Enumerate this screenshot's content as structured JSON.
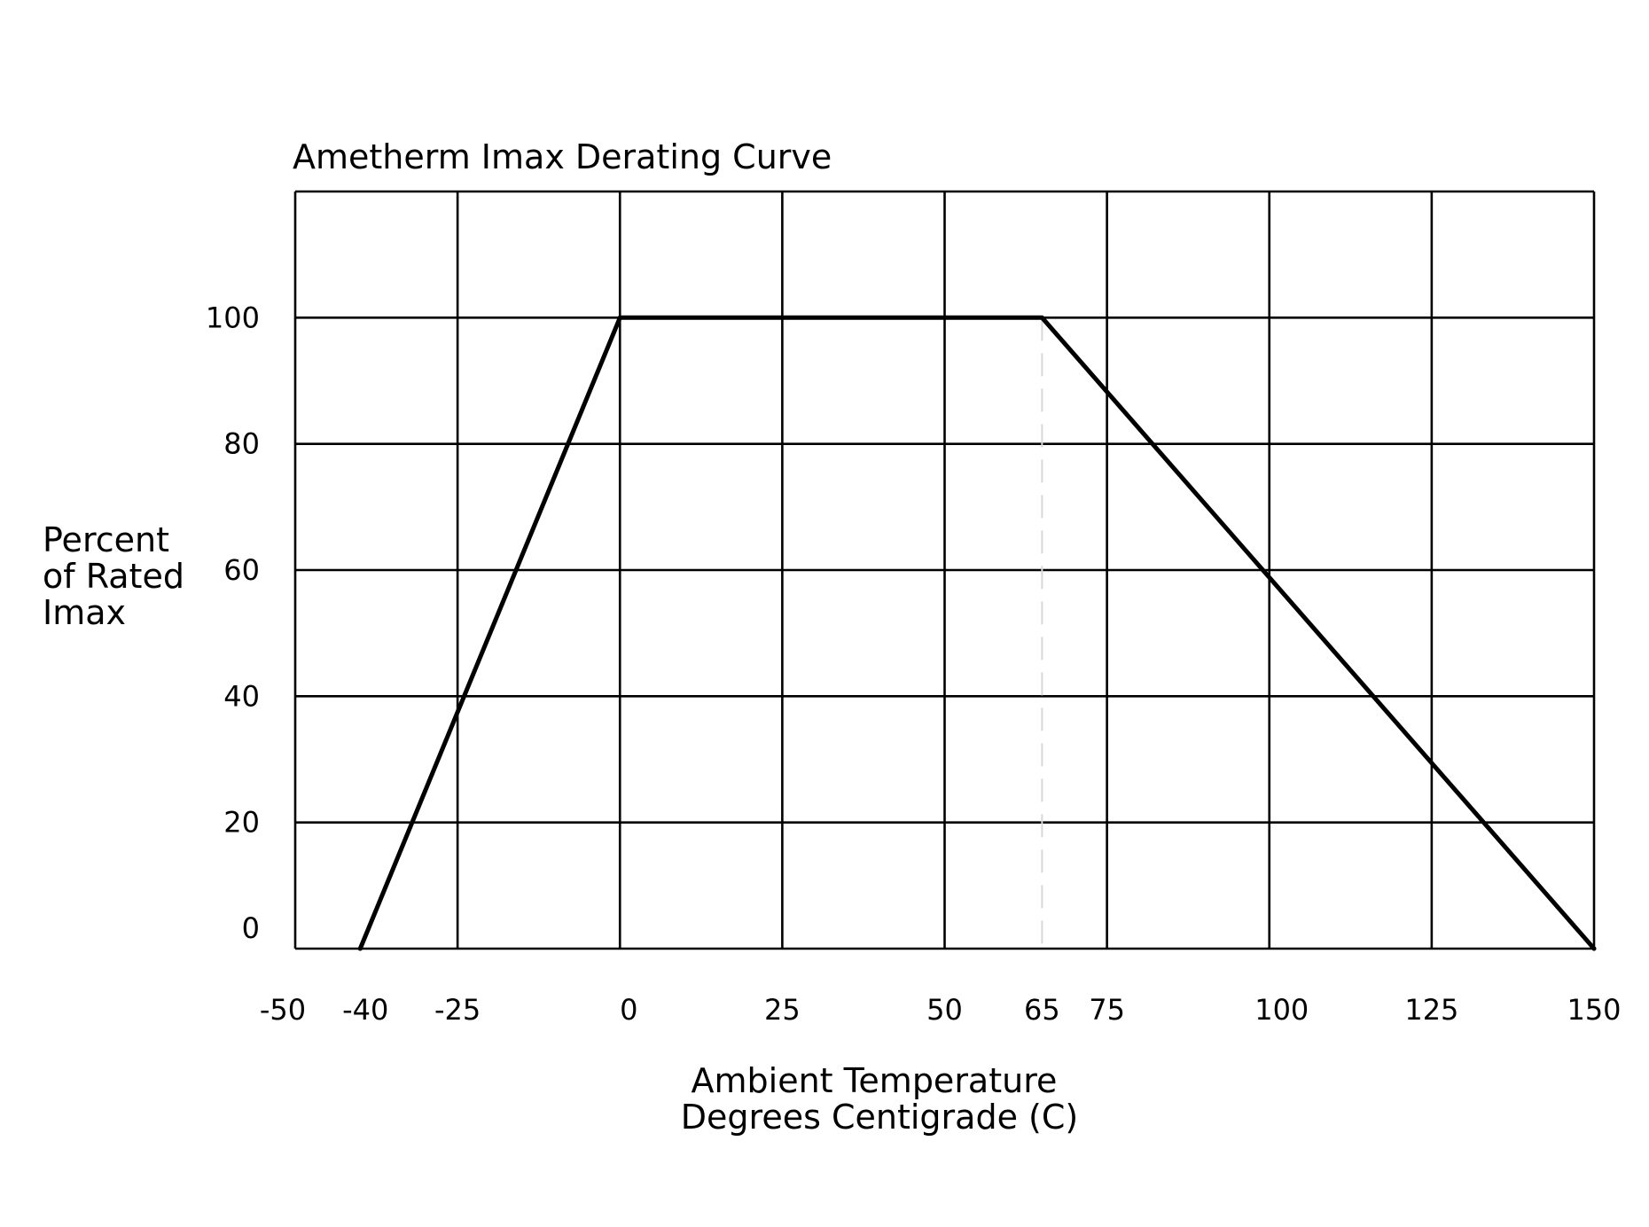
{
  "chart_data": {
    "type": "line",
    "title": "Ametherm Imax Derating Curve",
    "ylabel_lines": [
      "Percent",
      "of Rated",
      "Imax"
    ],
    "xlabel_lines": [
      "Ambient Temperature",
      "Degrees Centigrade (C)"
    ],
    "xlim": [
      -50,
      150
    ],
    "ylim": [
      0,
      120
    ],
    "x_gridlines": [
      -50,
      -25,
      0,
      25,
      50,
      75,
      100,
      125,
      150
    ],
    "y_gridlines": [
      0,
      20,
      40,
      60,
      80,
      100,
      120
    ],
    "x_ticks": [
      {
        "value": -50,
        "label": "-50"
      },
      {
        "value": -40,
        "label": "-40"
      },
      {
        "value": -25,
        "label": "-25"
      },
      {
        "value": 0,
        "label": "0"
      },
      {
        "value": 25,
        "label": "25"
      },
      {
        "value": 50,
        "label": "50"
      },
      {
        "value": 65,
        "label": "65"
      },
      {
        "value": 75,
        "label": "75"
      },
      {
        "value": 100,
        "label": "100"
      },
      {
        "value": 125,
        "label": "125"
      },
      {
        "value": 150,
        "label": "150"
      }
    ],
    "y_ticks": [
      {
        "value": 0,
        "label": "0"
      },
      {
        "value": 20,
        "label": "20"
      },
      {
        "value": 40,
        "label": "40"
      },
      {
        "value": 60,
        "label": "60"
      },
      {
        "value": 80,
        "label": "80"
      },
      {
        "value": 100,
        "label": "100"
      }
    ],
    "series": [
      {
        "x": [
          -40,
          0,
          65,
          150
        ],
        "y": [
          0,
          100,
          100,
          0
        ]
      }
    ],
    "reference_lines": [
      {
        "axis": "x",
        "value": 65,
        "style": "dashed",
        "color": "#d8d8d8"
      }
    ],
    "grid": true,
    "legend": "none",
    "line_color": "#000000",
    "grid_color": "#000000"
  }
}
